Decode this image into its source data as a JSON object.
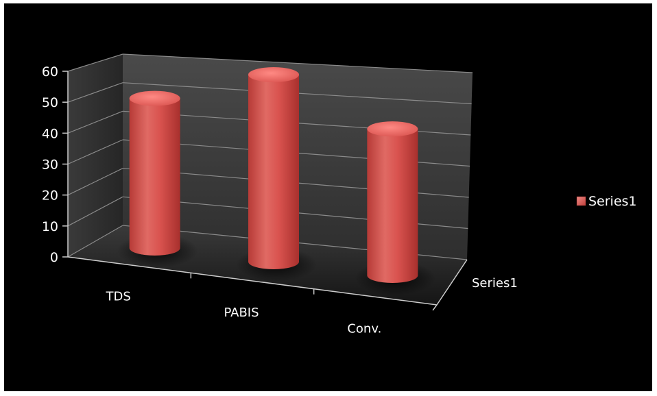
{
  "chart_data": {
    "type": "bar",
    "style": "3d-cylinder",
    "categories": [
      "TDS",
      "PABIS",
      "Conv."
    ],
    "series": [
      {
        "name": "Series1",
        "values": [
          48,
          60,
          47
        ]
      }
    ],
    "depth_axis_label": "Series1",
    "ylim": [
      0,
      60
    ],
    "yticks": [
      "0",
      "10",
      "20",
      "30",
      "40",
      "50",
      "60"
    ],
    "grid": true,
    "legend": {
      "position": "right",
      "entries": [
        "Series1"
      ]
    },
    "colors": {
      "bar": "#d9534f",
      "background": "#000000",
      "walls": "#3a3a3a",
      "floor": "#2a2a2a",
      "text": "#ffffff"
    }
  }
}
